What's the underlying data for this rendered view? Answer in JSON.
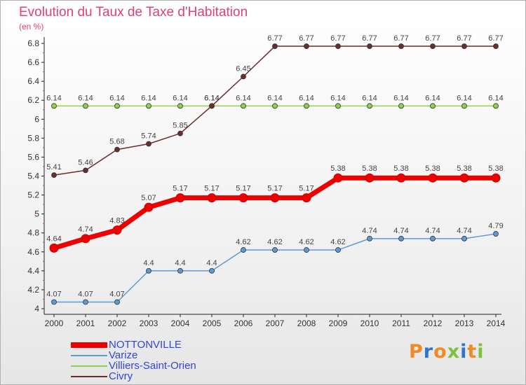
{
  "chart_data": {
    "type": "line",
    "title": "Evolution du Taux de Taxe d'Habitation",
    "unit_label": "(en %)",
    "x": [
      "2000",
      "2001",
      "2002",
      "2003",
      "2004",
      "2005",
      "2006",
      "2007",
      "2008",
      "2009",
      "2010",
      "2011",
      "2012",
      "2013",
      "2014"
    ],
    "ylim": [
      4,
      6.8
    ],
    "yticks": [
      "4",
      "4.2",
      "4.4",
      "4.6",
      "4.8",
      "5",
      "5.2",
      "5.4",
      "5.6",
      "5.8",
      "6",
      "6.2",
      "6.4",
      "6.6",
      "6.8"
    ],
    "grid": false,
    "legend_position": "bottom-left",
    "series": [
      {
        "name": "NOTTONVILLE",
        "color": "#ee0000",
        "values": [
          4.64,
          4.74,
          4.83,
          5.07,
          5.17,
          5.17,
          5.17,
          5.17,
          5.17,
          5.38,
          5.38,
          5.38,
          5.38,
          5.38,
          5.38
        ],
        "labels": [
          "4.64",
          "4.74",
          "4.83",
          "5.07",
          "5.17",
          "5.17",
          "5.17",
          "5.17",
          "5.17",
          "5.38",
          "5.38",
          "5.38",
          "5.38",
          "5.38",
          "5.38"
        ]
      },
      {
        "name": "Varize",
        "color": "#5b9bd5",
        "values": [
          4.07,
          4.07,
          4.07,
          4.4,
          4.4,
          4.4,
          4.62,
          4.62,
          4.62,
          4.62,
          4.74,
          4.74,
          4.74,
          4.74,
          4.79
        ],
        "labels": [
          "4.07",
          "4.07",
          "4.07",
          "4.4",
          "4.4",
          "4.4",
          "4.62",
          "4.62",
          "4.62",
          "4.62",
          "4.74",
          "4.74",
          "4.74",
          "4.74",
          "4.79"
        ]
      },
      {
        "name": "Villiers-Saint-Orien",
        "color": "#8fd14f",
        "values": [
          6.14,
          6.14,
          6.14,
          6.14,
          6.14,
          6.14,
          6.14,
          6.14,
          6.14,
          6.14,
          6.14,
          6.14,
          6.14,
          6.14,
          6.14
        ],
        "labels": [
          "6.14",
          "6.14",
          "6.14",
          "6.14",
          "6.14",
          "6.14",
          "6.14",
          "6.14",
          "6.14",
          "6.14",
          "6.14",
          "6.14",
          "6.14",
          "6.14",
          "6.14"
        ]
      },
      {
        "name": "Civry",
        "color": "#6b2c2c",
        "values": [
          5.41,
          5.46,
          5.68,
          5.74,
          5.85,
          6.14,
          6.45,
          6.77,
          6.77,
          6.77,
          6.77,
          6.77,
          6.77,
          6.77,
          6.77
        ],
        "labels": [
          "5.41",
          "5.46",
          "5.68",
          "5.74",
          "5.85",
          "6.14",
          "6.45",
          "6.77",
          "6.77",
          "6.77",
          "6.77",
          "6.77",
          "6.77",
          "6.77",
          "6.77"
        ]
      }
    ]
  },
  "brand": {
    "text": "Proxiti",
    "colors": [
      "#f08a24",
      "#2f76c9",
      "#f08a24",
      "#7cc242",
      "#2f76c9",
      "#f08a24",
      "#7cc242"
    ]
  }
}
